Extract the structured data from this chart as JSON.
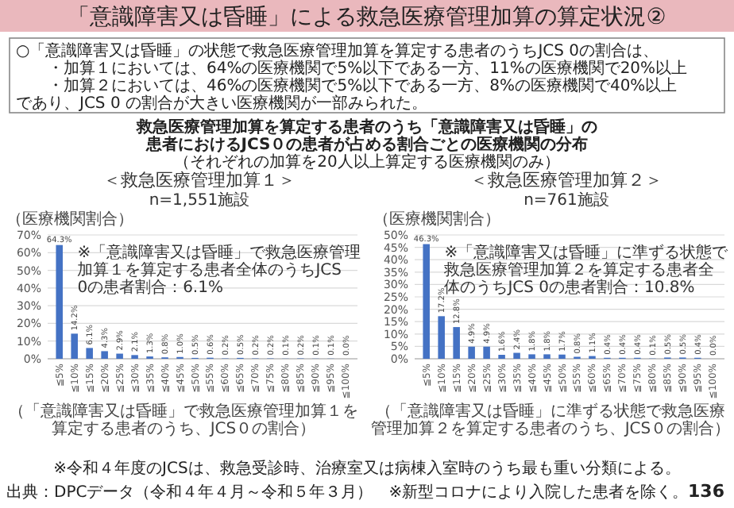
{
  "chart_data": [
    {
      "type": "other",
      "title": "「意識障害又は昏睡」による救急医療管理加算の算定状況②",
      "annotations": [
        "○「意識障害又は昏睡」の状態で救急医療管理加算を算定する患者のうちJCS 0の割合は、",
        "・加算１においては、64%の医療機関で5%以下である一方、11%の医療機関で20%以上",
        "・加算２においては、46%の医療機関で5%以下である一方、8%の医療機関で40%以上",
        "であり、JCS 0 の割合が大きい医療機関が一部みられた。",
        "救急医療管理加算を算定する患者のうち「意識障害又は昏睡」の",
        "患者におけるJCS０の患者が占める割合ごとの医療機関の分布",
        "（それぞれの加算を20人以上算定する医療機関のみ）",
        "※令和４年度のJCSは、救急受診時、治療室又は病棟入室時のうち最も重い分類による。",
        "出典：DPCデータ（令和４年４月～令和５年３月）　※新型コロナにより入院した患者を除く。",
        "136"
      ]
    },
    {
      "type": "bar",
      "title": "＜救急医療管理加算１＞",
      "subtitle": "n=1,551施設",
      "ylabel": "（医療機関割合）",
      "xlabel": "（「意識障害又は昏睡」で救急医療管理加算１を算定する患者のうち、JCS０の割合）",
      "annotations": [
        "※「意識障害又は昏睡」で救急医療管理加算１を算定する患者全体のうちJCS 0の患者割合：6.1%"
      ],
      "categories": [
        "≦5%",
        "≦10%",
        "≦15%",
        "≦20%",
        "≦25%",
        "≦30%",
        "≦35%",
        "≦40%",
        "≦45%",
        "≦50%",
        "≦55%",
        "≦60%",
        "≦65%",
        "≦70%",
        "≦75%",
        "≦80%",
        "≦85%",
        "≦90%",
        "≦95%",
        "≦100%"
      ],
      "values": [
        64.3,
        14.2,
        6.1,
        4.3,
        2.9,
        2.1,
        1.3,
        0.8,
        1.0,
        0.5,
        0.6,
        0.2,
        0.5,
        0.2,
        0.2,
        0.1,
        0.2,
        0.1,
        0.1,
        0.0
      ],
      "value_labels": [
        "64.3%",
        "14.2%",
        "6.1%",
        "4.3%",
        "2.9%",
        "2.1%",
        "1.3%",
        "0.8%",
        "1.0%",
        "0.5%",
        "0.6%",
        "0.2%",
        "0.5%",
        "0.2%",
        "0.2%",
        "0.1%",
        "0.2%",
        "0.1%",
        "0.1%",
        "0.0%"
      ],
      "color": "#4472c4",
      "ylim": [
        0,
        70
      ],
      "yticks": [
        {
          "value": 0,
          "label": "0%"
        },
        {
          "value": 10,
          "label": "10%"
        },
        {
          "value": 20,
          "label": "20%"
        },
        {
          "value": 30,
          "label": "30%"
        },
        {
          "value": 40,
          "label": "40%"
        },
        {
          "value": 50,
          "label": "50%"
        },
        {
          "value": 60,
          "label": "60%"
        },
        {
          "value": 70,
          "label": "70%"
        }
      ],
      "grid": "y"
    },
    {
      "type": "bar",
      "title": "＜救急医療管理加算２＞",
      "subtitle": "n=761施設",
      "ylabel": "（医療機関割合）",
      "xlabel": "（「意識障害又は昏睡」に準ずる状態で救急医療管理加算２を算定する患者のうち、JCS０の割合）",
      "annotations": [
        "※「意識障害又は昏睡」に準ずる状態で救急医療管理加算２を算定する患者全体のうちJCS 0の患者割合：10.8%"
      ],
      "categories": [
        "≦5%",
        "≦10%",
        "≦15%",
        "≦20%",
        "≦25%",
        "≦30%",
        "≦35%",
        "≦40%",
        "≦45%",
        "≦50%",
        "≦55%",
        "≦60%",
        "≦65%",
        "≦70%",
        "≦75%",
        "≦80%",
        "≦85%",
        "≦90%",
        "≦95%",
        "≦100%"
      ],
      "values": [
        46.3,
        17.2,
        12.8,
        4.9,
        4.9,
        1.6,
        2.4,
        1.8,
        1.8,
        1.7,
        0.8,
        1.1,
        0.4,
        0.4,
        0.4,
        0.1,
        0.5,
        0.5,
        0.4,
        0.0
      ],
      "value_labels": [
        "46.3%",
        "17.2%",
        "12.8%",
        "4.9%",
        "4.9%",
        "1.6%",
        "2.4%",
        "1.8%",
        "1.8%",
        "1.7%",
        "0.8%",
        "1.1%",
        "0.4%",
        "0.4%",
        "0.4%",
        "0.1%",
        "0.5%",
        "0.5%",
        "0.4%",
        "0.0%"
      ],
      "color": "#4472c4",
      "ylim": [
        0,
        50
      ],
      "yticks": [
        {
          "value": 0,
          "label": "0%"
        },
        {
          "value": 5,
          "label": "5%"
        },
        {
          "value": 10,
          "label": "10%"
        },
        {
          "value": 15,
          "label": "15%"
        },
        {
          "value": 20,
          "label": "20%"
        },
        {
          "value": 25,
          "label": "25%"
        },
        {
          "value": 30,
          "label": "30%"
        },
        {
          "value": 35,
          "label": "35%"
        },
        {
          "value": 40,
          "label": "40%"
        },
        {
          "value": 45,
          "label": "45%"
        },
        {
          "value": 50,
          "label": "50%"
        }
      ],
      "grid": "y"
    }
  ]
}
